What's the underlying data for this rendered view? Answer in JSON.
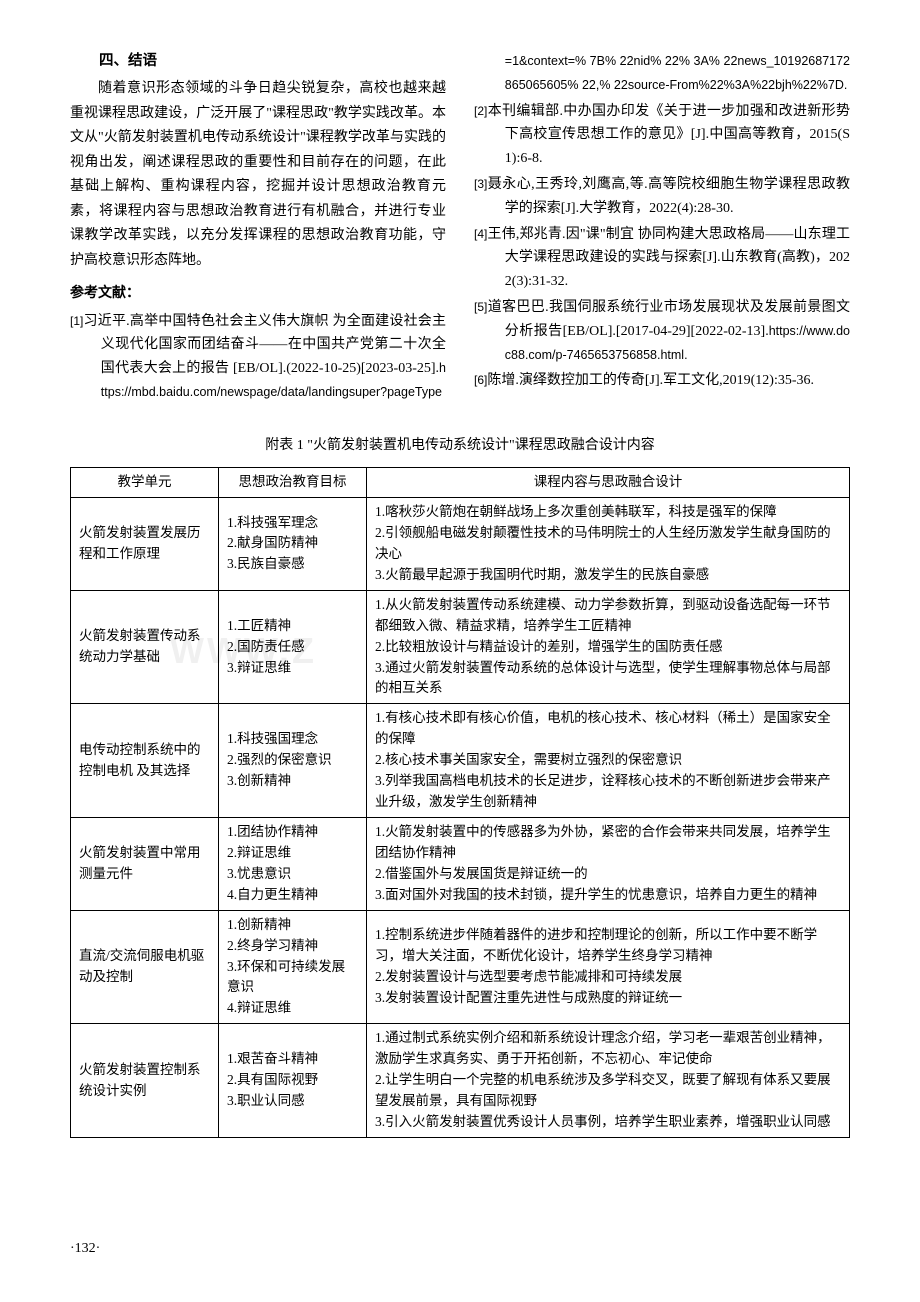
{
  "section": {
    "heading": "四、结语",
    "body": "随着意识形态领域的斗争日趋尖锐复杂，高校也越来越重视课程思政建设，广泛开展了\"课程思政\"教学实践改革。本文从\"火箭发射装置机电传动系统设计\"课程教学改革与实践的视角出发，阐述课程思政的重要性和目前存在的问题，在此基础上解构、重构课程内容，挖掘并设计思想政治教育元素，将课程内容与思想政治教育进行有机融合，并进行专业课教学改革实践，以充分发挥课程的思想政治教育功能，守护高校意识形态阵地。"
  },
  "refs": {
    "title": "参考文献：",
    "items": [
      {
        "n": "[1]",
        "text": "习近平.高举中国特色社会主义伟大旗帜 为全面建设社会主义现代化国家而团结奋斗——在中国共产党第二十次全国代表大会上的报告 [EB/OL].(2022-10-25)[2023-03-25].",
        "url": "https://mbd.baidu.com/newspage/data/landingsuper?pageType=1&context=% 7B% 22nid% 22% 3A% 22news_10192687172865065605% 22,% 22source-From%22%3A%22bjh%22%7D."
      },
      {
        "n": "[2]",
        "text": "本刊编辑部.中办国办印发《关于进一步加强和改进新形势下高校宣传思想工作的意见》[J].中国高等教育，2015(S1):6-8.",
        "url": ""
      },
      {
        "n": "[3]",
        "text": "聂永心,王秀玲,刘鹰高,等.高等院校细胞生物学课程思政教学的探索[J].大学教育，2022(4):28-30.",
        "url": ""
      },
      {
        "n": "[4]",
        "text": "王伟,郑兆青.因\"课\"制宜 协同构建大思政格局——山东理工大学课程思政建设的实践与探索[J].山东教育(高教)，2022(3):31-32.",
        "url": ""
      },
      {
        "n": "[5]",
        "text": "道客巴巴.我国伺服系统行业市场发展现状及发展前景图文分析报告[EB/OL].[2017-04-29][2022-02-13].",
        "url": "https://www.doc88.com/p-7465653756858.html."
      },
      {
        "n": "[6]",
        "text": "陈增.演绎数控加工的传奇[J].军工文化,2019(12):35-36.",
        "url": ""
      }
    ]
  },
  "table": {
    "caption": "附表 1 \"火箭发射装置机电传动系统设计\"课程思政融合设计内容",
    "headers": [
      "教学单元",
      "思想政治教育目标",
      "课程内容与思政融合设计"
    ],
    "rows": [
      {
        "c1": "火箭发射装置发展历程和工作原理",
        "c2": "1.科技强军理念\n2.献身国防精神\n3.民族自豪感",
        "c3": "1.喀秋莎火箭炮在朝鲜战场上多次重创美韩联军，科技是强军的保障\n2.引领舰船电磁发射颠覆性技术的马伟明院士的人生经历激发学生献身国防的决心\n3.火箭最早起源于我国明代时期，激发学生的民族自豪感"
      },
      {
        "c1": "火箭发射装置传动系统动力学基础",
        "c2": "1.工匠精神\n2.国防责任感\n3.辩证思维",
        "c3": "1.从火箭发射装置传动系统建模、动力学参数折算，到驱动设备选配每一环节都细致入微、精益求精，培养学生工匠精神\n2.比较粗放设计与精益设计的差别，增强学生的国防责任感\n3.通过火箭发射装置传动系统的总体设计与选型，使学生理解事物总体与局部的相互关系"
      },
      {
        "c1": "电传动控制系统中的控制电机 及其选择",
        "c2": "1.科技强国理念\n2.强烈的保密意识\n3.创新精神",
        "c3": "1.有核心技术即有核心价值，电机的核心技术、核心材料（稀土）是国家安全的保障\n2.核心技术事关国家安全，需要树立强烈的保密意识\n3.列举我国高档电机技术的长足进步，诠释核心技术的不断创新进步会带来产业升级，激发学生创新精神"
      },
      {
        "c1": "火箭发射装置中常用测量元件",
        "c2": "1.团结协作精神\n2.辩证思维\n3.忧患意识\n4.自力更生精神",
        "c3": "1.火箭发射装置中的传感器多为外协，紧密的合作会带来共同发展，培养学生团结协作精神\n2.借鉴国外与发展国货是辩证统一的\n3.面对国外对我国的技术封锁，提升学生的忧患意识，培养自力更生的精神"
      },
      {
        "c1": "直流/交流伺服电机驱动及控制",
        "c2": "1.创新精神\n2.终身学习精神\n3.环保和可持续发展意识\n4.辩证思维",
        "c3": "1.控制系统进步伴随着器件的进步和控制理论的创新，所以工作中要不断学习，增大关注面，不断优化设计，培养学生终身学习精神\n2.发射装置设计与选型要考虑节能减排和可持续发展\n3.发射装置设计配置注重先进性与成熟度的辩证统一"
      },
      {
        "c1": "火箭发射装置控制系统设计实例",
        "c2": "1.艰苦奋斗精神\n2.具有国际视野\n3.职业认同感",
        "c3": "1.通过制式系统实例介绍和新系统设计理念介绍，学习老一辈艰苦创业精神，激励学生求真务实、勇于开拓创新，不忘初心、牢记使命\n2.让学生明白一个完整的机电系统涉及多学科交叉，既要了解现有体系又要展望发展前景，具有国际视野\n3.引入火箭发射装置优秀设计人员事例，培养学生职业素养，增强职业认同感"
      }
    ]
  },
  "pageNum": "·132·"
}
